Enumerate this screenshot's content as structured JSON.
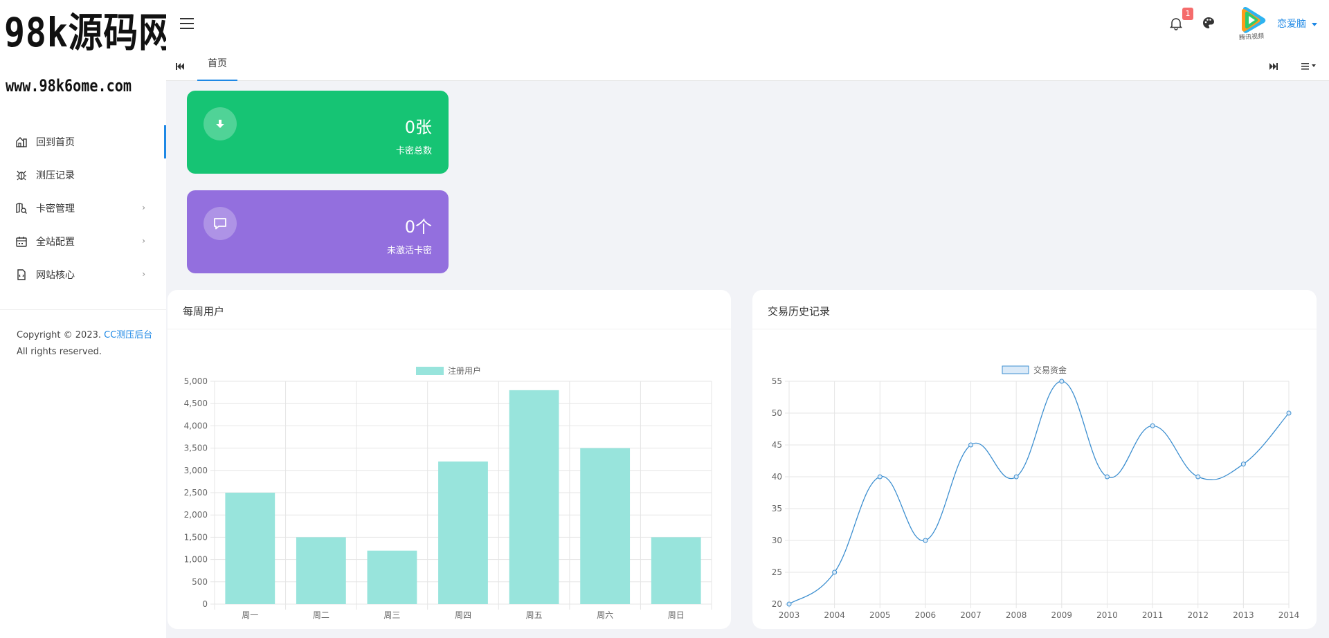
{
  "logo": {
    "main": "98k源码网",
    "sub": "www.98k6ome.com"
  },
  "sidebar": {
    "items": [
      {
        "label": "回到首页",
        "icon": "home-icon",
        "active": true,
        "has_arrow": false
      },
      {
        "label": "测压记录",
        "icon": "bug-icon",
        "active": false,
        "has_arrow": false
      },
      {
        "label": "卡密管理",
        "icon": "map-search-icon",
        "active": false,
        "has_arrow": true
      },
      {
        "label": "全站配置",
        "icon": "calendar-icon",
        "active": false,
        "has_arrow": true
      },
      {
        "label": "网站核心",
        "icon": "file-code-icon",
        "active": false,
        "has_arrow": true
      }
    ],
    "arrow": "›"
  },
  "footer": {
    "copyright_prefix": "Copyright © 2023.",
    "brand": "CC测压后台",
    "rights": "All rights reserved."
  },
  "header": {
    "notification_count": "1",
    "avatar_text": "腾讯视频",
    "username": "恋爱脑"
  },
  "tabbar": {
    "home_tab": "首页"
  },
  "stats": [
    {
      "value": "0张",
      "label": "卡密总数",
      "icon": "download-icon",
      "color": "#16c474"
    },
    {
      "value": "0个",
      "label": "未激活卡密",
      "icon": "comment-icon",
      "color": "#936fde"
    }
  ],
  "panels": {
    "weekly": {
      "title": "每周用户"
    },
    "history": {
      "title": "交易历史记录"
    }
  },
  "chart_data": [
    {
      "type": "bar",
      "legend": "注册用户",
      "categories": [
        "周一",
        "周二",
        "周三",
        "周四",
        "周五",
        "周六",
        "周日"
      ],
      "values": [
        2500,
        1500,
        1200,
        3200,
        4800,
        3500,
        1500
      ],
      "ylim": [
        0,
        5000
      ],
      "yticks": [
        0,
        500,
        1000,
        1500,
        2000,
        2500,
        3000,
        3500,
        4000,
        4500,
        5000
      ],
      "ytick_labels": [
        "0",
        "500",
        "1,000",
        "1,500",
        "2,000",
        "2,500",
        "3,000",
        "3,500",
        "4,000",
        "4,500",
        "5,000"
      ],
      "color": "#98e4dc",
      "grid": true,
      "legend_position": "top"
    },
    {
      "type": "line",
      "legend": "交易资金",
      "x": [
        "2003",
        "2004",
        "2005",
        "2006",
        "2007",
        "2008",
        "2009",
        "2010",
        "2011",
        "2012",
        "2013",
        "2014"
      ],
      "values": [
        20,
        25,
        40,
        30,
        45,
        40,
        55,
        40,
        48,
        40,
        42,
        50
      ],
      "ylim": [
        20,
        55
      ],
      "yticks": [
        20,
        25,
        30,
        35,
        40,
        45,
        50,
        55
      ],
      "color": "#3d8fd0",
      "fill": "#dbeaf8",
      "grid": true,
      "legend_position": "top"
    }
  ]
}
